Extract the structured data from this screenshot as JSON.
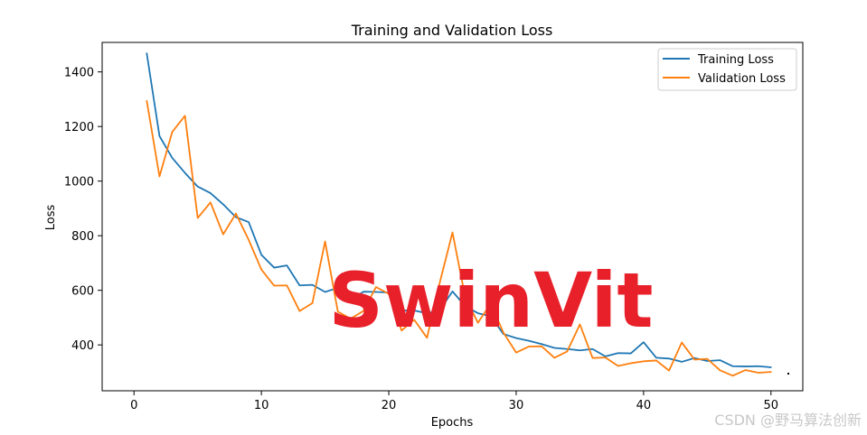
{
  "chart_data": {
    "type": "line",
    "title": "Training and Validation Loss",
    "xlabel": "Epochs",
    "ylabel": "Loss",
    "xlim": [
      -2.5,
      52.5
    ],
    "ylim": [
      232,
      1508
    ],
    "xticks": [
      0,
      10,
      20,
      30,
      40,
      50
    ],
    "yticks": [
      400,
      600,
      800,
      1000,
      1200,
      1400
    ],
    "grid": false,
    "legend_position": "top-right",
    "x": [
      1,
      2,
      3,
      4,
      5,
      6,
      7,
      8,
      9,
      10,
      11,
      12,
      13,
      14,
      15,
      16,
      17,
      18,
      19,
      20,
      21,
      22,
      23,
      24,
      25,
      26,
      27,
      28,
      29,
      30,
      31,
      32,
      33,
      34,
      35,
      36,
      37,
      38,
      39,
      40,
      41,
      42,
      43,
      44,
      45,
      46,
      47,
      48,
      49,
      50
    ],
    "series": [
      {
        "name": "Training Loss",
        "color": "#1f77b4",
        "values": [
          1468,
          1165,
          1085,
          1030,
          980,
          956,
          915,
          868,
          850,
          730,
          683,
          691,
          618,
          620,
          594,
          609,
          562,
          595,
          594,
          592,
          526,
          526,
          516,
          527,
          596,
          542,
          516,
          505,
          440,
          425,
          415,
          403,
          389,
          385,
          380,
          385,
          358,
          370,
          369,
          410,
          353,
          350,
          338,
          352,
          341,
          344,
          322,
          321,
          322,
          318
        ]
      },
      {
        "name": "Validation Loss",
        "color": "#ff7f0e",
        "values": [
          1294,
          1017,
          1180,
          1239,
          865,
          922,
          805,
          881,
          785,
          676,
          617,
          618,
          524,
          553,
          779,
          522,
          496,
          524,
          612,
          587,
          453,
          492,
          426,
          628,
          812,
          574,
          481,
          551,
          445,
          372,
          394,
          395,
          353,
          376,
          475,
          352,
          354,
          323,
          333,
          340,
          343,
          306,
          409,
          346,
          349,
          307,
          287,
          308,
          298,
          301
        ]
      }
    ],
    "annotations": [
      "SwinVit"
    ]
  },
  "watermark": "CSDN @野马算法创新"
}
